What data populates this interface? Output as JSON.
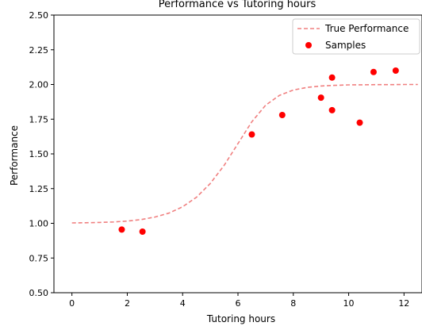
{
  "chart_data": {
    "type": "scatter",
    "title": "Performance vs Tutoring hours",
    "xlabel": "Tutoring hours",
    "ylabel": "Performance",
    "xlim": [
      -0.65,
      12.65
    ],
    "ylim": [
      0.5,
      2.5
    ],
    "xticks": [
      0,
      2,
      4,
      6,
      8,
      10,
      12
    ],
    "xtick_labels": [
      "0",
      "2",
      "4",
      "6",
      "8",
      "10",
      "12"
    ],
    "yticks": [
      0.5,
      0.75,
      1.0,
      1.25,
      1.5,
      1.75,
      2.0,
      2.25,
      2.5
    ],
    "ytick_labels": [
      "0.50",
      "0.75",
      "1.00",
      "1.25",
      "1.50",
      "1.75",
      "2.00",
      "2.25",
      "2.50"
    ],
    "grid": false,
    "legend_position": "top-right",
    "series": [
      {
        "name": "True Performance",
        "kind": "line",
        "style": "dashed",
        "color": "#f08080",
        "x": [
          0,
          0.5,
          1,
          1.5,
          2,
          2.5,
          3,
          3.5,
          4,
          4.5,
          5,
          5.5,
          6,
          6.5,
          7,
          7.5,
          8,
          8.5,
          9,
          9.5,
          10,
          10.5,
          11,
          11.5,
          12,
          12.5
        ],
        "y": [
          1.003,
          1.004,
          1.006,
          1.01,
          1.016,
          1.027,
          1.045,
          1.073,
          1.119,
          1.188,
          1.287,
          1.418,
          1.574,
          1.731,
          1.851,
          1.922,
          1.96,
          1.979,
          1.989,
          1.994,
          1.997,
          1.998,
          1.999,
          1.999,
          2.0,
          2.0
        ]
      },
      {
        "name": "Samples",
        "kind": "scatter",
        "color": "#ff0000",
        "x": [
          1.8,
          2.55,
          6.5,
          7.6,
          9.0,
          9.4,
          9.4,
          10.4,
          10.9,
          11.7
        ],
        "y": [
          0.955,
          0.94,
          1.64,
          1.78,
          1.905,
          2.05,
          1.815,
          1.725,
          2.09,
          2.1
        ]
      }
    ]
  }
}
